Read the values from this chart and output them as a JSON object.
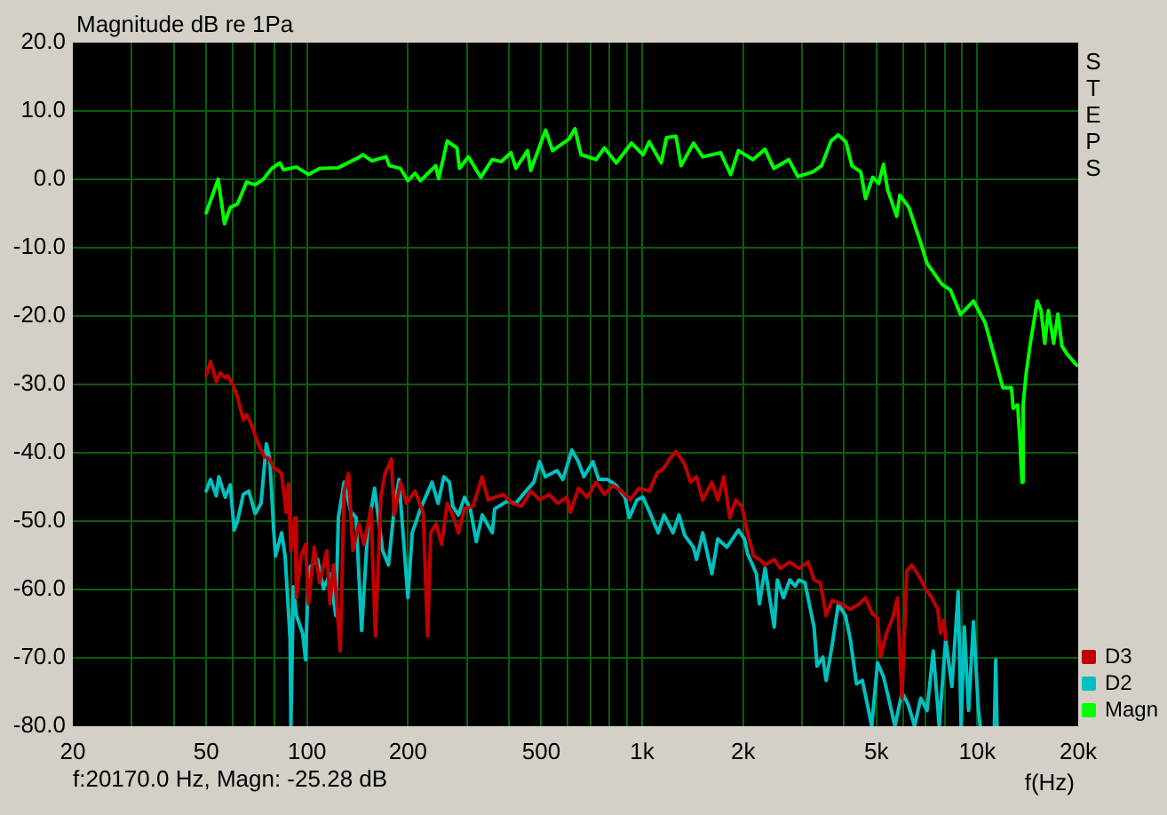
{
  "chart_data": {
    "type": "line",
    "ylabel": "Magnitude dB re 1Pa",
    "xlabel": "f(Hz)",
    "annotations": [
      "f:20170.0 Hz, Magn: -25.28 dB",
      "STEPS"
    ],
    "log": "x",
    "grid": true,
    "legend": "bottom right",
    "xlim": [
      20,
      20000
    ],
    "xticks": [
      20,
      {
        "value": 30,
        "label": null
      },
      {
        "value": 40,
        "label": null
      },
      50,
      {
        "value": 60,
        "label": null
      },
      {
        "value": 70,
        "label": null
      },
      {
        "value": 80,
        "label": null
      },
      {
        "value": 90,
        "label": null
      },
      100,
      200,
      {
        "value": 300,
        "label": null
      },
      {
        "value": 400,
        "label": null
      },
      500,
      {
        "value": 600,
        "label": null
      },
      {
        "value": 700,
        "label": null
      },
      {
        "value": 800,
        "label": null
      },
      {
        "value": 900,
        "label": null
      },
      {
        "value": 1000,
        "label": "1k"
      },
      {
        "value": 2000,
        "label": "2k"
      },
      {
        "value": 3000,
        "label": null
      },
      {
        "value": 4000,
        "label": null
      },
      {
        "value": 5000,
        "label": "5k"
      },
      {
        "value": 6000,
        "label": null
      },
      {
        "value": 7000,
        "label": null
      },
      {
        "value": 8000,
        "label": null
      },
      {
        "value": 9000,
        "label": null
      },
      {
        "value": 10000,
        "label": "10k"
      },
      {
        "value": 20000,
        "label": "20k"
      }
    ],
    "ylim": [
      -80,
      20
    ],
    "yticks": [
      {
        "value": -80,
        "label": "-80.0"
      },
      {
        "value": -70,
        "label": "-70.0"
      },
      {
        "value": -60,
        "label": "-60.0"
      },
      {
        "value": -50,
        "label": "-50.0"
      },
      {
        "value": -40,
        "label": "-40.0"
      },
      {
        "value": -30,
        "label": "-30.0"
      },
      {
        "value": -20,
        "label": "-20.0"
      },
      {
        "value": -10,
        "label": "-10.0"
      },
      {
        "value": 0,
        "label": "0.0"
      },
      {
        "value": 10,
        "label": "10.0"
      },
      {
        "value": 20,
        "label": "20.0"
      }
    ],
    "series": [
      {
        "name": "D3",
        "color": "#c00000",
        "x": [
          50,
          51.5,
          53.6,
          55,
          57,
          58,
          60.6,
          62,
          64.5,
          65.9,
          68,
          71.5,
          74.6,
          77.4,
          79.5,
          82,
          84,
          86.6,
          88,
          89.5,
          92,
          93,
          96,
          99,
          101,
          105,
          109,
          112,
          114.5,
          117,
          120,
          121.8,
          125.6,
          129,
          133,
          137,
          142.7,
          148,
          155,
          160,
          166,
          171,
          178.5,
          182,
          190,
          198,
          210,
          222,
          229,
          234,
          243,
          252,
          262,
          272,
          283,
          295,
          313,
          333,
          347,
          363,
          385,
          410,
          437,
          465,
          495,
          527,
          560,
          595,
          611,
          645,
          686,
          729,
          771,
          818,
          868,
          921,
          978,
          1051,
          1107,
          1162,
          1207,
          1262,
          1340,
          1394,
          1452,
          1516,
          1615,
          1681,
          1752,
          1826,
          1903,
          1983,
          2062,
          2150,
          2240,
          2327,
          2478,
          2585,
          2756,
          2935,
          3127,
          3258,
          3400,
          3540,
          3690,
          3930,
          4180,
          4450,
          4640,
          4840,
          5040,
          5140,
          5360,
          5590,
          5780,
          5960,
          6160,
          6380,
          6730,
          7010,
          7310,
          7620,
          7770,
          7950,
          8050
        ],
        "values": [
          -28.7,
          -26.6,
          -29.6,
          -28.3,
          -29,
          -28.7,
          -30.5,
          -31.8,
          -35.2,
          -34.4,
          -35.7,
          -38.7,
          -40.6,
          -40.9,
          -42.2,
          -42.6,
          -43.1,
          -48.7,
          -44.5,
          -54.3,
          -49.5,
          -61.2,
          -55.1,
          -53.4,
          -62.1,
          -53.8,
          -59,
          -56.4,
          -54.3,
          -62.1,
          -56.4,
          -59.9,
          -69,
          -45.6,
          -43,
          -54.3,
          -50.4,
          -53.4,
          -48.2,
          -66.8,
          -46.5,
          -43,
          -40.9,
          -49.1,
          -44.3,
          -47.4,
          -45.6,
          -48.7,
          -66.8,
          -51.7,
          -50.4,
          -53.4,
          -47.4,
          -49.1,
          -51.7,
          -48.2,
          -47.8,
          -43.5,
          -46.9,
          -46.5,
          -46.1,
          -47.4,
          -47.8,
          -45.6,
          -46.9,
          -46.1,
          -47.4,
          -46.5,
          -48.7,
          -45.2,
          -46.5,
          -44.3,
          -46.1,
          -44.8,
          -45.6,
          -46.9,
          -45.2,
          -45.6,
          -43,
          -42.2,
          -40.9,
          -39.8,
          -41.7,
          -44.3,
          -43.5,
          -46.9,
          -44.3,
          -46.9,
          -43.5,
          -49.5,
          -46.9,
          -47.8,
          -51.7,
          -55.1,
          -55.6,
          -56.4,
          -55.6,
          -56.9,
          -56,
          -56.9,
          -56,
          -58.6,
          -59,
          -63.8,
          -61.6,
          -62.1,
          -62.9,
          -62.1,
          -61.2,
          -63.4,
          -64.2,
          -69.9,
          -66.4,
          -64.2,
          -61.2,
          -75.9,
          -57.3,
          -56.4,
          -58.2,
          -59.9,
          -61.2,
          -62.9,
          -66.4,
          -64.5,
          -67.3
        ]
      },
      {
        "name": "D2",
        "color": "#00c0c0",
        "x": [
          50,
          51.5,
          53.6,
          54.5,
          57,
          59,
          60.6,
          62,
          64.5,
          67,
          70,
          72.9,
          75.6,
          77.4,
          79.5,
          80.5,
          84,
          86,
          89,
          89.5,
          91,
          93,
          97,
          99,
          101,
          107.5,
          112,
          117,
          121.8,
          124,
          129,
          135,
          140,
          145.5,
          151.5,
          159,
          168,
          175,
          182,
          188,
          200,
          206,
          218,
          236,
          246,
          256,
          266,
          272,
          283,
          295,
          307,
          320,
          333,
          357,
          363,
          395,
          420,
          450,
          475,
          494,
          514,
          557,
          580,
          617,
          645,
          670,
          713,
          742,
          789,
          837,
          889,
          915,
          965,
          1005,
          1051,
          1116,
          1162,
          1236,
          1287,
          1340,
          1422,
          1452,
          1516,
          1615,
          1681,
          1790,
          1937,
          2020,
          2062,
          2192,
          2237,
          2327,
          2478,
          2531,
          2640,
          2756,
          2860,
          2935,
          3060,
          3258,
          3325,
          3460,
          3540,
          3690,
          3850,
          4040,
          4180,
          4360,
          4540,
          4740,
          4840,
          5040,
          5260,
          5490,
          5680,
          5960,
          6220,
          6500,
          6780,
          7080,
          7390,
          7700,
          8050,
          8400,
          8770,
          8950,
          9150,
          9420,
          9740,
          10080,
          10200,
          10700,
          11250,
          11350,
          11450
        ],
        "values": [
          -45.6,
          -43.9,
          -46.3,
          -43.5,
          -46.5,
          -44.7,
          -51.3,
          -50,
          -46.1,
          -45.6,
          -48.9,
          -47.4,
          -38.7,
          -40.9,
          -51.3,
          -55.1,
          -51.7,
          -55.1,
          -67.3,
          -80,
          -59.6,
          -63.8,
          -66.4,
          -70.3,
          -56.9,
          -55.6,
          -59.9,
          -57.7,
          -63.8,
          -49.5,
          -44.3,
          -48.6,
          -49.5,
          -66,
          -51.7,
          -45.2,
          -54.3,
          -56.4,
          -48.2,
          -43.9,
          -61.2,
          -51.7,
          -48.2,
          -44.3,
          -47.4,
          -43.5,
          -44.3,
          -47.8,
          -49.1,
          -46.5,
          -48.2,
          -53,
          -49.1,
          -51.7,
          -48.2,
          -47.1,
          -47.4,
          -45.6,
          -44.3,
          -41.3,
          -43.5,
          -42.6,
          -43.9,
          -39.6,
          -41.3,
          -43.5,
          -41.3,
          -43.9,
          -43.9,
          -44.8,
          -46.5,
          -49.5,
          -46.9,
          -46.5,
          -48.6,
          -51.7,
          -49.1,
          -51.7,
          -49.1,
          -52.1,
          -53.8,
          -55.6,
          -51.7,
          -57.7,
          -52.6,
          -53.8,
          -51.3,
          -52.6,
          -54.7,
          -57.7,
          -62.1,
          -56.9,
          -65.5,
          -58.6,
          -61.2,
          -58.6,
          -59.5,
          -58.6,
          -59,
          -65.5,
          -71.2,
          -69.9,
          -73.3,
          -68.1,
          -62.1,
          -63.8,
          -67.3,
          -73.8,
          -73.3,
          -77.7,
          -80,
          -70.7,
          -72.9,
          -76.8,
          -80,
          -75.1,
          -76.8,
          -80,
          -75.9,
          -77.7,
          -69,
          -80,
          -67.3,
          -74.2,
          -60.3,
          -80,
          -65.5,
          -77.7,
          -64.7,
          -77.7,
          -80,
          null,
          -80,
          -70.3,
          -80
        ]
      },
      {
        "name": "Magn",
        "color": "#00ff00",
        "x": [
          50,
          54.3,
          56.7,
          59,
          62,
          66,
          70,
          74,
          78.5,
          83,
          85,
          93,
          101,
          109,
          124,
          140,
          147,
          156,
          164,
          172,
          176,
          190,
          200,
          210,
          218,
          232,
          242,
          247,
          262,
          280,
          285,
          303,
          330,
          357,
          380,
          406,
          420,
          455,
          465,
          515,
          540,
          605,
          630,
          657,
          729,
          771,
          837,
          929,
          1006,
          1050,
          1140,
          1182,
          1262,
          1306,
          1423,
          1516,
          1714,
          1837,
          1937,
          2141,
          2326,
          2471,
          2738,
          2914,
          3229,
          3432,
          3660,
          3845,
          4056,
          4225,
          4490,
          4640,
          4875,
          5080,
          5250,
          5400,
          5750,
          5870,
          6250,
          6780,
          7080,
          7830,
          8320,
          8920,
          9740,
          10560,
          11220,
          11920,
          12300,
          12650,
          12800,
          13200,
          13400,
          13600,
          13700,
          14000,
          14400,
          15100,
          15500,
          15900,
          16300,
          16900,
          17400,
          17900,
          18500,
          19800
        ],
        "values": [
          -4.9,
          0,
          -6.5,
          -4.1,
          -3.6,
          -0.4,
          -0.8,
          0,
          1.6,
          2.4,
          1.4,
          1.8,
          0.7,
          1.6,
          1.7,
          3,
          3.6,
          2.7,
          3,
          3.3,
          2,
          1.6,
          -0.2,
          0.9,
          -0.2,
          1.1,
          2,
          0.1,
          5.6,
          4.6,
          1.6,
          3.3,
          0.3,
          2.9,
          2.6,
          3.9,
          1.6,
          4.2,
          1.3,
          7.2,
          4.2,
          5.9,
          7.4,
          3.6,
          2.9,
          4.6,
          2.4,
          5.3,
          3.6,
          5.5,
          2.4,
          6.1,
          6.3,
          2,
          5.3,
          3.3,
          3.9,
          0.7,
          4.2,
          2.9,
          4.4,
          1.6,
          2.9,
          0.4,
          1.1,
          2,
          5.6,
          6.5,
          5.5,
          2,
          1.1,
          -2.8,
          0.3,
          -0.6,
          2.2,
          -1.5,
          -5.4,
          -2.3,
          -4.1,
          -9.3,
          -12.3,
          -15.3,
          -16.2,
          -19.8,
          -17.8,
          -21,
          -25.7,
          -30.5,
          -30.5,
          -30.5,
          -33.5,
          -33,
          -38,
          -44.3,
          -33,
          -28.3,
          -24,
          -17.8,
          -19.2,
          -24,
          -19.2,
          -24,
          -19.7,
          -24.4,
          -25.5,
          -27.2
        ]
      }
    ]
  }
}
